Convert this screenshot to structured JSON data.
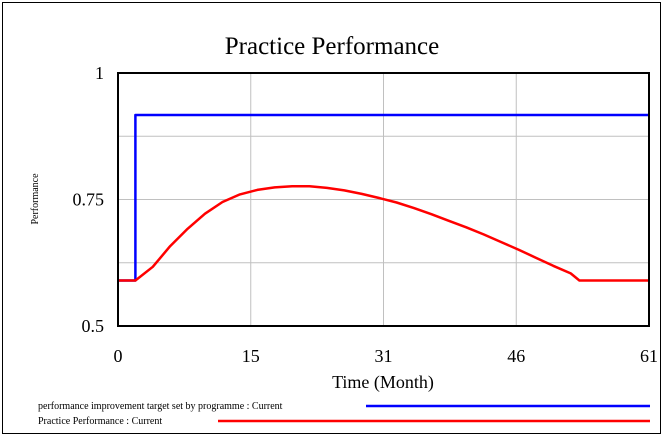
{
  "chart_data": {
    "type": "line",
    "title": "Practice Performance",
    "xlabel": "Time (Month)",
    "ylabel": "Performance",
    "xlim": [
      0,
      61
    ],
    "ylim": [
      0.5,
      1
    ],
    "x_ticks": [
      "0",
      "15",
      "31",
      "46",
      "61"
    ],
    "x_tick_values": [
      0,
      15.25,
      30.5,
      45.75,
      61
    ],
    "y_ticks": [
      "0.5",
      "0.75",
      "1"
    ],
    "y_tick_values": [
      0.5,
      0.75,
      1
    ],
    "grid": true,
    "legend_position": "bottom-left",
    "series": [
      {
        "name": "performance improvement target set by programme : Current",
        "color": "#0000ff",
        "points": [
          [
            0,
            0.59
          ],
          [
            2,
            0.59
          ],
          [
            2,
            0.917
          ],
          [
            61,
            0.917
          ]
        ]
      },
      {
        "name": "Practice Performance : Current",
        "color": "#ff0000",
        "points": [
          [
            0,
            0.59
          ],
          [
            2,
            0.59
          ],
          [
            4,
            0.617
          ],
          [
            6,
            0.658
          ],
          [
            8,
            0.692
          ],
          [
            10,
            0.722
          ],
          [
            12,
            0.745
          ],
          [
            14,
            0.76
          ],
          [
            16,
            0.769
          ],
          [
            18,
            0.774
          ],
          [
            20,
            0.776
          ],
          [
            22,
            0.776
          ],
          [
            24,
            0.773
          ],
          [
            26,
            0.768
          ],
          [
            28,
            0.761
          ],
          [
            30,
            0.753
          ],
          [
            32,
            0.744
          ],
          [
            34,
            0.733
          ],
          [
            36,
            0.721
          ],
          [
            38,
            0.708
          ],
          [
            40,
            0.695
          ],
          [
            42,
            0.681
          ],
          [
            44,
            0.666
          ],
          [
            46,
            0.651
          ],
          [
            48,
            0.635
          ],
          [
            50,
            0.619
          ],
          [
            52,
            0.604
          ],
          [
            53,
            0.59
          ],
          [
            61,
            0.59
          ]
        ]
      }
    ]
  }
}
